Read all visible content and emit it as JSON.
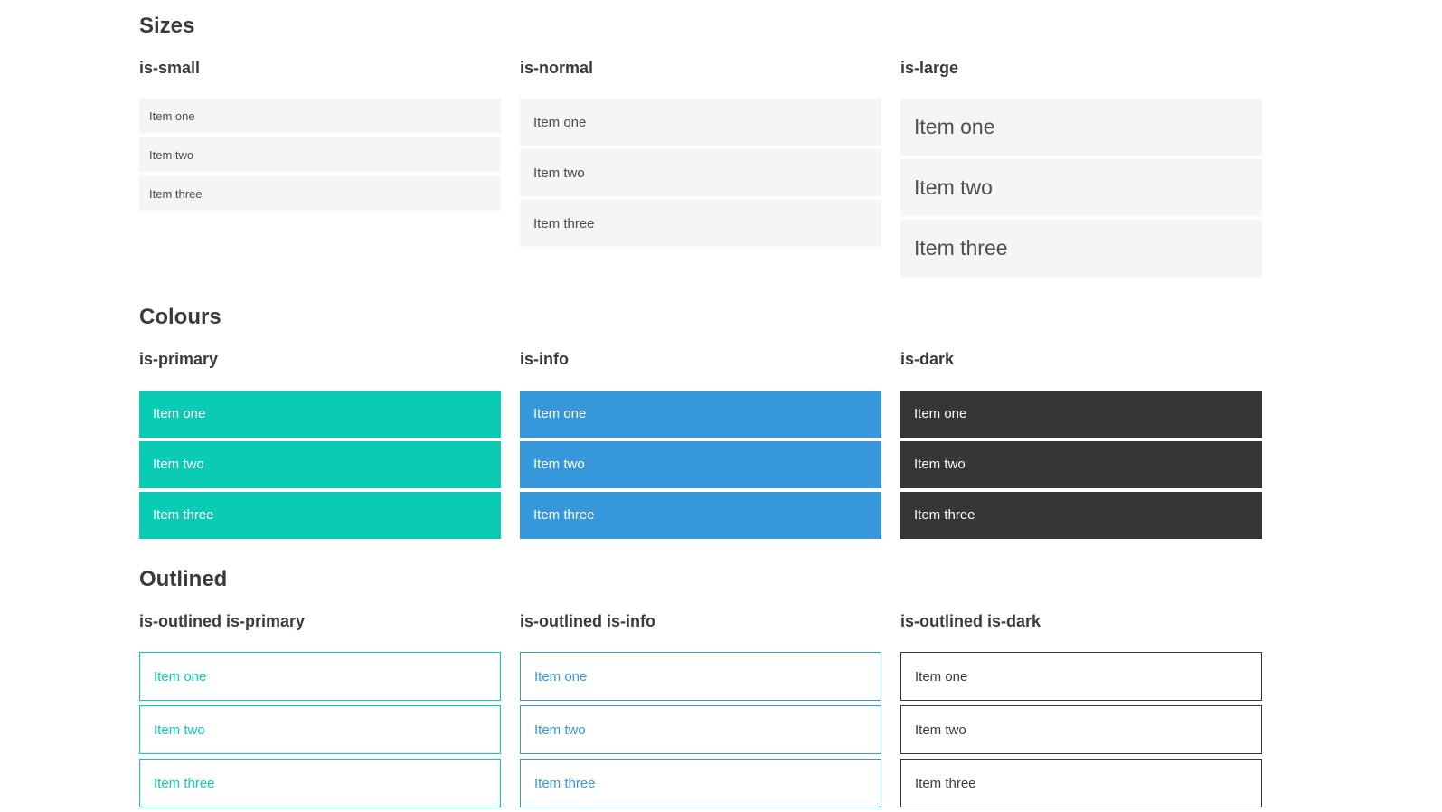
{
  "colors": {
    "primary": "#0accb5",
    "info": "#3698db",
    "dark": "#363636",
    "light_bg": "#f5f5f5",
    "heading": "#3b3b3b",
    "text": "#4a4a4a",
    "on_color": "#ffffff"
  },
  "sections": [
    {
      "id": "sizes",
      "title": "Sizes",
      "groups": [
        {
          "label": "is-small",
          "variant": "small",
          "items": [
            "Item one",
            "Item two",
            "Item three"
          ]
        },
        {
          "label": "is-normal",
          "variant": "normal",
          "items": [
            "Item one",
            "Item two",
            "Item three"
          ]
        },
        {
          "label": "is-large",
          "variant": "large",
          "items": [
            "Item one",
            "Item two",
            "Item three"
          ]
        }
      ]
    },
    {
      "id": "colours",
      "title": "Colours",
      "groups": [
        {
          "label": "is-primary",
          "variant": "primary",
          "items": [
            "Item one",
            "Item two",
            "Item three"
          ]
        },
        {
          "label": "is-info",
          "variant": "info",
          "items": [
            "Item one",
            "Item two",
            "Item three"
          ]
        },
        {
          "label": "is-dark",
          "variant": "dark",
          "items": [
            "Item one",
            "Item two",
            "Item three"
          ]
        }
      ]
    },
    {
      "id": "outlined",
      "title": "Outlined",
      "groups": [
        {
          "label": "is-outlined is-primary",
          "variant": "outlined-primary",
          "items": [
            "Item one",
            "Item two",
            "Item three"
          ]
        },
        {
          "label": "is-outlined is-info",
          "variant": "outlined-info",
          "items": [
            "Item one",
            "Item two",
            "Item three"
          ]
        },
        {
          "label": "is-outlined is-dark",
          "variant": "outlined-dark",
          "items": [
            "Item one",
            "Item two",
            "Item three"
          ]
        }
      ]
    }
  ]
}
